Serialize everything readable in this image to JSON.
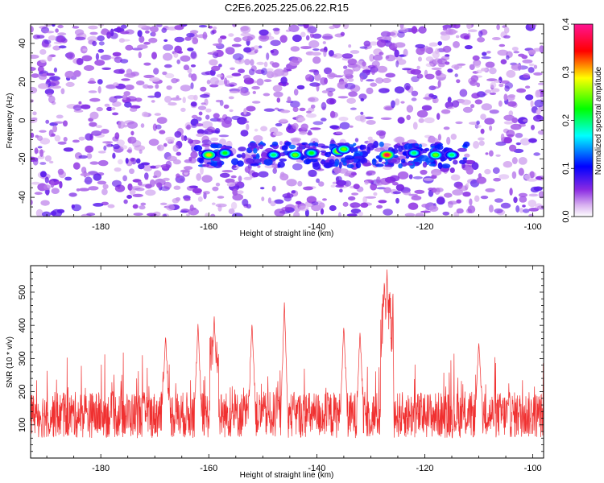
{
  "title": "C2E6.2025.225.06.22.R15",
  "chart_data": [
    {
      "type": "heatmap",
      "xlabel": "Height of straight line (km)",
      "ylabel": "Frequency (Hz)",
      "xlim": [
        -193,
        -98
      ],
      "ylim": [
        -50,
        50
      ],
      "xticks": [
        -180,
        -160,
        -140,
        -120,
        -100
      ],
      "yticks": [
        -40,
        -20,
        0,
        20,
        40
      ],
      "colorbar": {
        "label": "Normalized spectral amplitude",
        "range": [
          0,
          0.4
        ],
        "ticks": [
          "0.0",
          "0.1",
          "0.2",
          "0.3",
          "0.4"
        ],
        "colors": [
          "#ffffff",
          "#8a2be2",
          "#0000ff",
          "#00ffff",
          "#00ff00",
          "#ffff00",
          "#ff0000",
          "#ff1493"
        ]
      },
      "background_amplitude": 0.05,
      "signal_band": {
        "frequency_hz": -18,
        "x_range": [
          -162,
          -112
        ],
        "hotspots": [
          {
            "x": -160,
            "f": -18,
            "amp": 0.3
          },
          {
            "x": -157,
            "f": -17,
            "amp": 0.22
          },
          {
            "x": -148,
            "f": -18,
            "amp": 0.2
          },
          {
            "x": -144,
            "f": -18,
            "amp": 0.25
          },
          {
            "x": -141,
            "f": -17,
            "amp": 0.22
          },
          {
            "x": -136,
            "f": -16,
            "amp": 0.3
          },
          {
            "x": -135,
            "f": -15,
            "amp": 0.25
          },
          {
            "x": -127,
            "f": -18,
            "amp": 0.38
          },
          {
            "x": -122,
            "f": -17,
            "amp": 0.2
          },
          {
            "x": -118,
            "f": -18,
            "amp": 0.25
          },
          {
            "x": -115,
            "f": -18,
            "amp": 0.2
          }
        ]
      }
    },
    {
      "type": "line",
      "xlabel": "Height of straight line (km)",
      "ylabel": "SNR (10 * v/v)",
      "xlim": [
        -193,
        -98
      ],
      "ylim": [
        0,
        580
      ],
      "xticks": [
        -180,
        -160,
        -140,
        -120,
        -100
      ],
      "yticks": [
        100,
        200,
        300,
        400,
        500
      ],
      "color": "#f03030",
      "baseline_snr": 130,
      "noise_amplitude": 70,
      "peaks": [
        {
          "x": -127,
          "y": 575
        },
        {
          "x": -127.5,
          "y": 540
        },
        {
          "x": -126.5,
          "y": 470
        },
        {
          "x": -159,
          "y": 430
        },
        {
          "x": -146,
          "y": 470
        },
        {
          "x": -135,
          "y": 400
        },
        {
          "x": -162,
          "y": 405
        },
        {
          "x": -152,
          "y": 410
        },
        {
          "x": -110,
          "y": 350
        },
        {
          "x": -168,
          "y": 370
        },
        {
          "x": -132,
          "y": 380
        }
      ]
    }
  ]
}
